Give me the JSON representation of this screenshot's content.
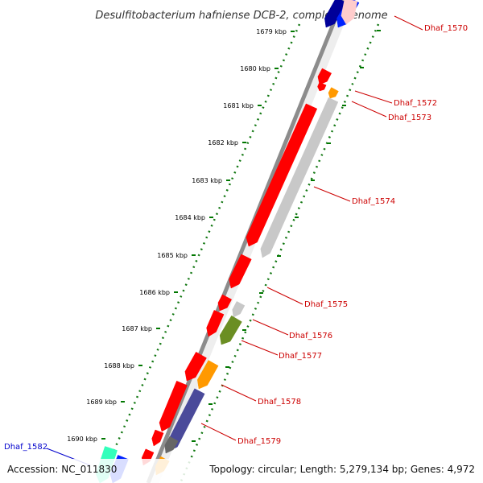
{
  "title": "Desulfitobacterium hafniense DCB-2, complete genome",
  "ticks": [
    "1679 kbp",
    "1680 kbp",
    "1681 kbp",
    "1682 kbp",
    "1683 kbp",
    "1684 kbp",
    "1685 kbp",
    "1686 kbp",
    "1687 kbp",
    "1688 kbp",
    "1689 kbp",
    "1690 kbp"
  ],
  "gene_labels": [
    "Dhaf_1570",
    "Dhaf_1572",
    "Dhaf_1573",
    "Dhaf_1574",
    "Dhaf_1575",
    "Dhaf_1576",
    "Dhaf_1577",
    "Dhaf_1578",
    "Dhaf_1579"
  ],
  "left_gene_label": "Dhaf_1582",
  "accession": "Accession: NC_011830",
  "summary": "Topology: circular; Length: 5,279,134 bp; Genes: 4,972",
  "colors": {
    "red": "#ff0000",
    "gray": "#c8c8c8",
    "orange": "#ff9900",
    "olive": "#6b8e23",
    "navy": "#000099",
    "blue": "#0022ff",
    "slate": "#4a4a9a",
    "darkgray": "#666666",
    "teal": "#33ffbb",
    "backbone": "#808080",
    "tick_green": "#007700",
    "label_red": "#cc0000",
    "label_blue": "#0000cc"
  }
}
